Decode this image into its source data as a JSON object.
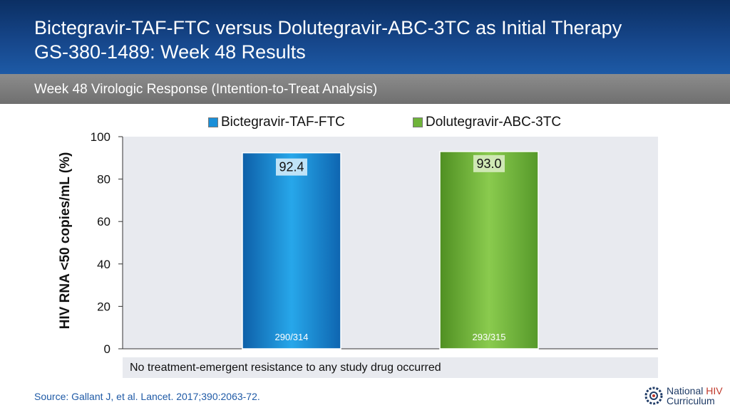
{
  "header": {
    "title_line1": "Bictegravir-TAF-FTC versus Dolutegravir-ABC-3TC as Initial Therapy",
    "title_line2": "GS-380-1489: Week 48 Results"
  },
  "subheader": {
    "text": "Week 48 Virologic Response (Intention-to-Treat Analysis)"
  },
  "chart_data": {
    "type": "bar",
    "categories": [
      "Bictegravir-TAF-FTC",
      "Dolutegravir-ABC-3TC"
    ],
    "values": [
      92.4,
      93.0
    ],
    "value_labels": [
      "92.4",
      "93.0"
    ],
    "count_labels": [
      "290/314",
      "293/315"
    ],
    "ylabel": "HIV RNA <50 copies/mL (%)",
    "ylim": [
      0,
      100
    ],
    "yticks": [
      "0",
      "20",
      "40",
      "60",
      "80",
      "100"
    ],
    "legend": [
      "Bictegravir-TAF-FTC",
      "Dolutegravir-ABC-3TC"
    ],
    "legend_position": "top",
    "colors": [
      "#1a8fd8",
      "#6fb43a"
    ],
    "grid": false
  },
  "note": "No treatment-emergent resistance to any study drug occurred",
  "source": "Source: Gallant J, et al. Lancet. 2017;390:2063-72.",
  "logo": {
    "line1a": "National ",
    "line1b": "HIV",
    "line2": "Curriculum"
  }
}
